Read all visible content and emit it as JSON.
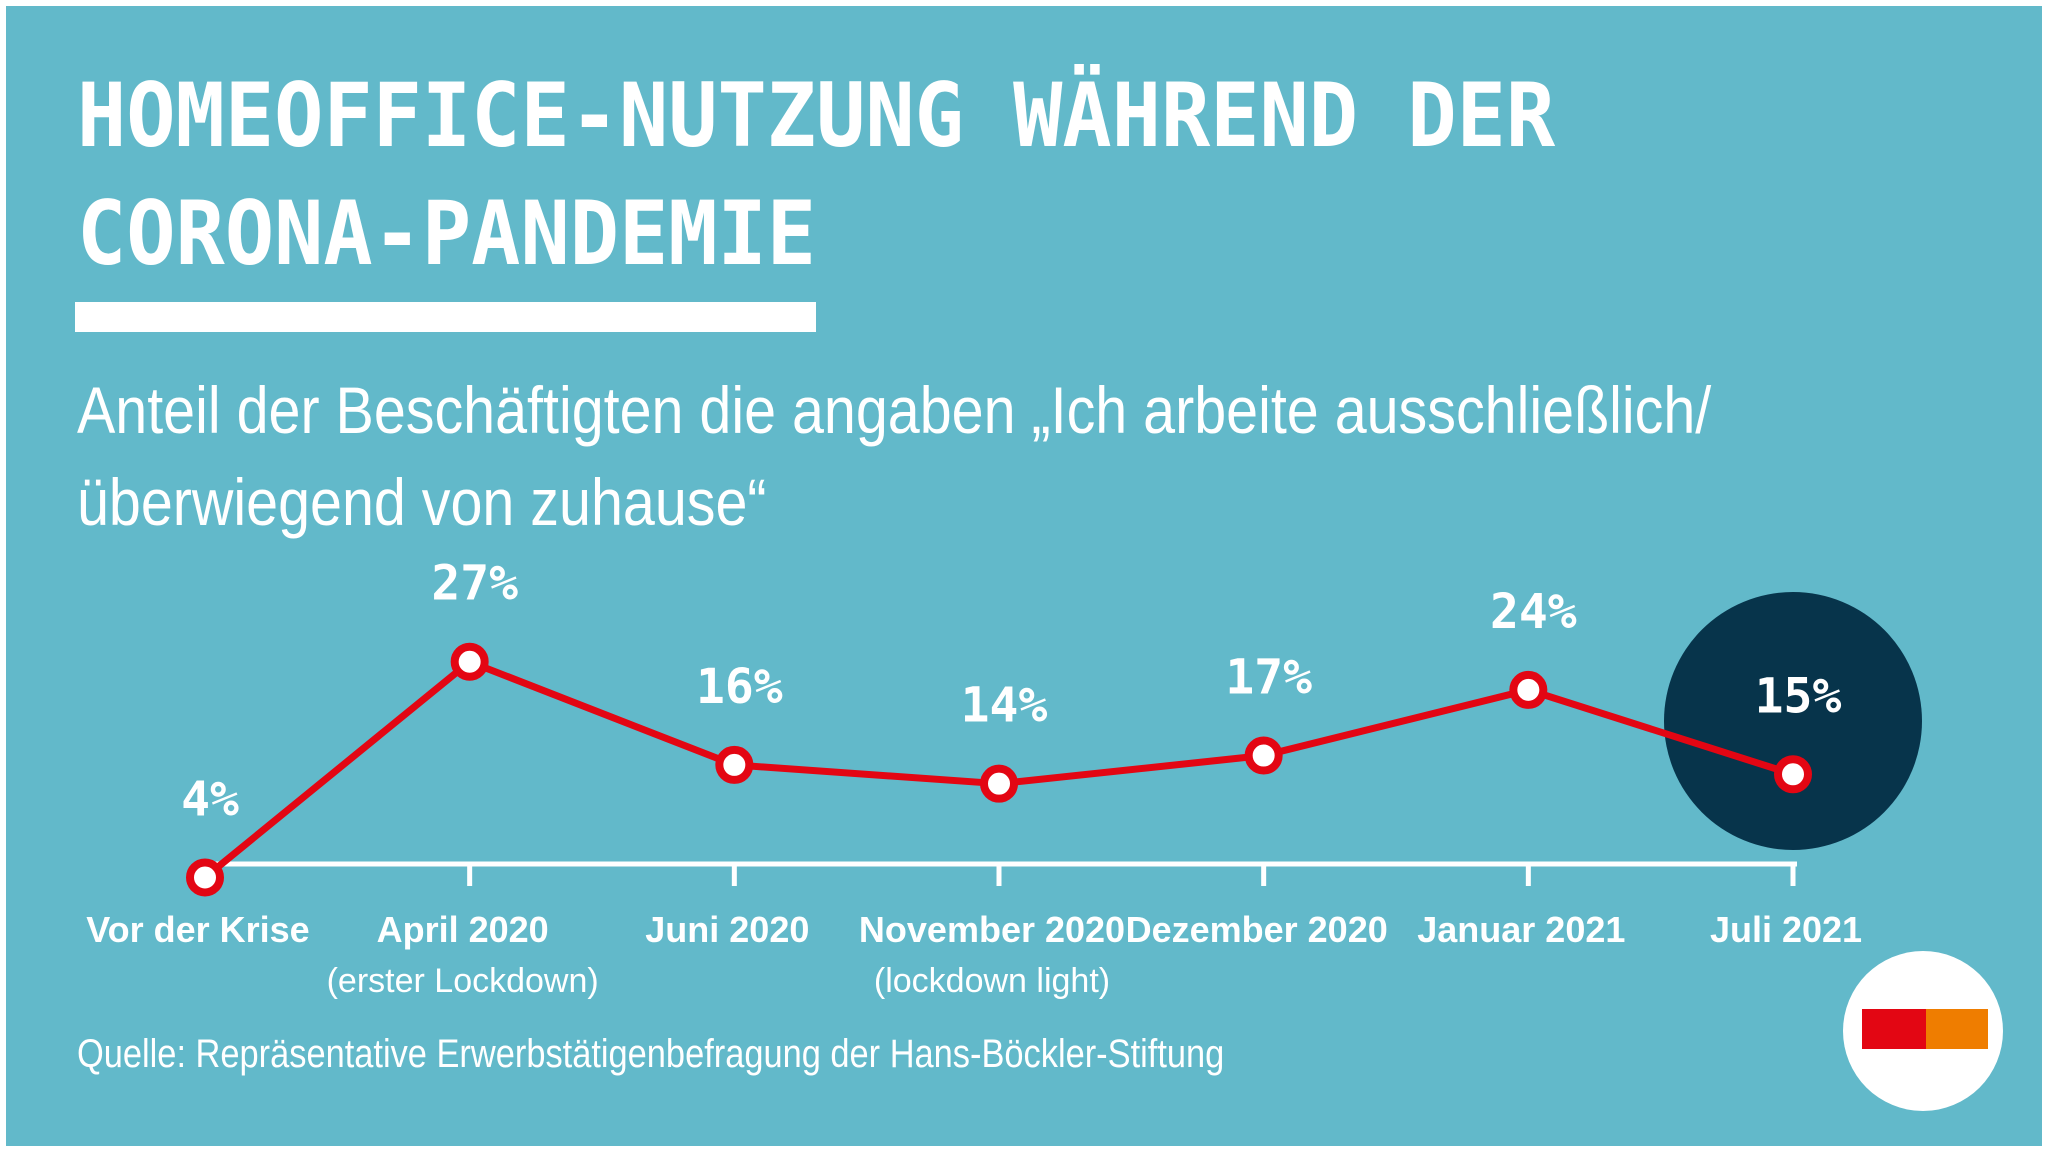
{
  "colors": {
    "background": "#62b9ca",
    "text": "#ffffff",
    "line": "#e30613",
    "highlight": "#07344b",
    "logo_red": "#e30613",
    "logo_orange": "#ef7d00"
  },
  "header": {
    "title_line_1": "HOMEOFFICE-NUTZUNG WÄHREND DER",
    "title_line_2": "CORONA-PANDEMIE",
    "subtitle_line_1": "Anteil der Beschäftigten die angaben „Ich arbeite ausschließlich/",
    "subtitle_line_2": "überwiegend von zuhause“"
  },
  "footer": {
    "source": "Quelle: Repräsentative Erwerbstätigenbefragung der Hans-Böckler-Stiftung"
  },
  "logo": {
    "icon": "hans-boeckler-logo-icon"
  },
  "chart_data": {
    "type": "line",
    "title": "HOMEOFFICE-NUTZUNG WÄHREND DER CORONA-PANDEMIE",
    "subtitle": "Anteil der Beschäftigten die angaben „Ich arbeite ausschließlich/ überwiegend von zuhause“",
    "unit": "%",
    "categories": [
      {
        "label": "Vor der Krise",
        "sublabel": ""
      },
      {
        "label": "April 2020",
        "sublabel": "(erster Lockdown)"
      },
      {
        "label": "Juni 2020",
        "sublabel": ""
      },
      {
        "label": "November 2020",
        "sublabel": "(lockdown light)"
      },
      {
        "label": "Dezember 2020",
        "sublabel": ""
      },
      {
        "label": "Januar 2021",
        "sublabel": ""
      },
      {
        "label": "Juli 2021",
        "sublabel": ""
      }
    ],
    "values": [
      4,
      27,
      16,
      14,
      17,
      24,
      15
    ],
    "value_labels": [
      "4%",
      "27%",
      "16%",
      "14%",
      "17%",
      "24%",
      "15%"
    ],
    "highlight_index": 6,
    "grid": false,
    "legend": "none"
  }
}
